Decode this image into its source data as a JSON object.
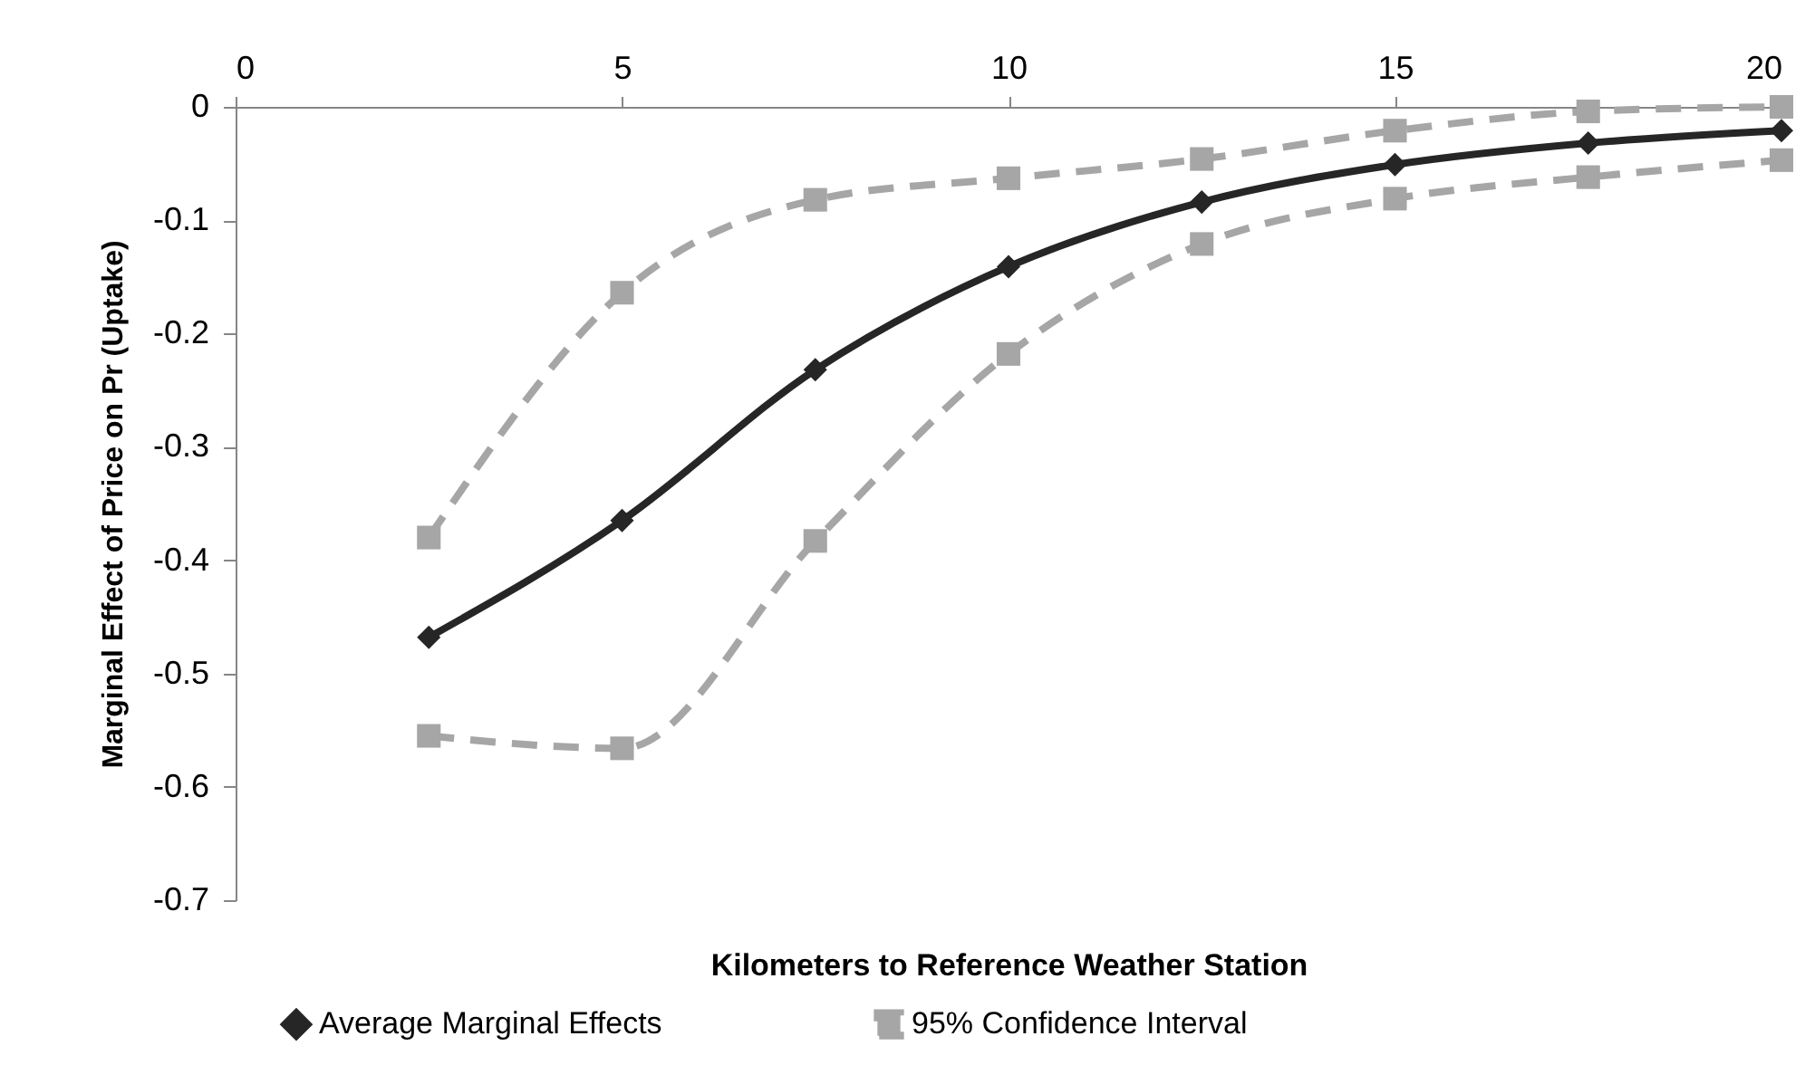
{
  "chart_data": {
    "type": "line",
    "xlabel": "Kilometers to Reference Weather Station",
    "ylabel": "Marginal Effect of Price on Pr (Uptake)",
    "x": [
      2.5,
      5,
      7.5,
      10,
      12.5,
      15,
      17.5,
      20
    ],
    "series": [
      {
        "name": "Average Marginal Effects",
        "color": "#262626",
        "marker": "diamond",
        "line_style": "solid",
        "values": [
          -0.468,
          -0.365,
          -0.232,
          -0.141,
          -0.084,
          -0.051,
          -0.032,
          -0.021
        ]
      },
      {
        "name": "95% Confidence Interval",
        "color": "#a6a6a6",
        "marker": "square",
        "line_style": "dashed",
        "values": [
          -0.38,
          -0.164,
          -0.082,
          -0.063,
          -0.046,
          -0.021,
          -0.004,
          0
        ]
      },
      {
        "color": "#a6a6a6",
        "marker": "square",
        "line_style": "dashed",
        "values": [
          -0.555,
          -0.566,
          -0.383,
          -0.218,
          -0.121,
          -0.081,
          -0.062,
          -0.047
        ]
      }
    ],
    "xlim": [
      0,
      20
    ],
    "xticks": [
      0,
      5,
      10,
      15,
      20
    ],
    "ylim": [
      -0.7,
      0
    ],
    "yticks": [
      0,
      -0.1,
      -0.2,
      -0.3,
      -0.4,
      -0.5,
      -0.6,
      -0.7
    ],
    "grid": false,
    "legend": "bottom"
  }
}
